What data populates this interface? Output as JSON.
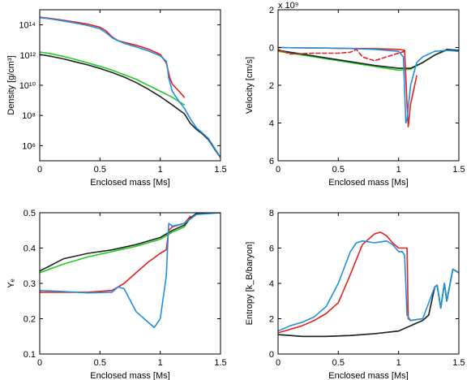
{
  "chart_data": [
    {
      "type": "line",
      "xlabel": "Enclosed mass [Ms]",
      "ylabel": "Density [g/cm³]",
      "yscale": "log",
      "xlim": [
        0,
        1.5
      ],
      "ylim": [
        100000,
        1000000000000000
      ],
      "xticks": [
        0,
        0.5,
        1,
        1.5
      ],
      "xtick_labels": [
        "0",
        "0.5",
        "1",
        "1.5"
      ],
      "yticks": [
        1000000,
        100000000,
        10000000000,
        1000000000000,
        100000000000000
      ],
      "ytick_labels": [
        "10⁶",
        "10⁸",
        "10¹⁰",
        "10¹²",
        "10¹⁴"
      ],
      "series": [
        {
          "color": "#22cc22",
          "style": "solid",
          "x": [
            0,
            0.1,
            0.2,
            0.3,
            0.4,
            0.5,
            0.6,
            0.7,
            0.8,
            0.9,
            1.0,
            1.1,
            1.2
          ],
          "y": [
            1600000000000.0,
            1200000000000.0,
            800000000000.0,
            500000000000.0,
            300000000000.0,
            180000000000.0,
            100000000000.0,
            50000000000.0,
            25000000000.0,
            10000000000.0,
            4000000000.0,
            1600000000.0,
            500000000.0
          ]
        },
        {
          "color": "#222222",
          "style": "solid",
          "x": [
            0,
            0.1,
            0.2,
            0.3,
            0.4,
            0.5,
            0.6,
            0.7,
            0.8,
            0.9,
            1.0,
            1.1,
            1.2,
            1.25,
            1.3,
            1.35,
            1.4,
            1.45,
            1.5
          ],
          "y": [
            1100000000000.0,
            800000000000.0,
            550000000000.0,
            350000000000.0,
            220000000000.0,
            130000000000.0,
            70000000000.0,
            35000000000.0,
            15000000000.0,
            5500000000.0,
            1800000000.0,
            500000000.0,
            130000000.0,
            30000000.0,
            12000000.0,
            6000000.0,
            2500000.0,
            600000.0,
            160000.0
          ]
        },
        {
          "color": "#e8201f",
          "style": "solid",
          "x": [
            0,
            0.1,
            0.2,
            0.3,
            0.4,
            0.5,
            0.55,
            0.6,
            0.65,
            0.7,
            0.8,
            0.9,
            1.0,
            1.05,
            1.08,
            1.1,
            1.15,
            1.2
          ],
          "y": [
            320000000000000.0,
            260000000000000.0,
            200000000000000.0,
            150000000000000.0,
            110000000000000.0,
            70000000000000.0,
            40000000000000.0,
            16000000000000.0,
            9000000000000.0,
            7000000000000.0,
            4500000000000.0,
            2500000000000.0,
            1100000000000.0,
            300000000000.0,
            30000000000.0,
            12000000000.0,
            4500000000.0,
            1600000000.0
          ]
        },
        {
          "color": "#1f8fe0",
          "style": "solid",
          "x": [
            0,
            0.1,
            0.2,
            0.3,
            0.4,
            0.5,
            0.55,
            0.6,
            0.65,
            0.7,
            0.8,
            0.9,
            1.0,
            1.05,
            1.06,
            1.07,
            1.08,
            1.1,
            1.15,
            1.2,
            1.25,
            1.3,
            1.35,
            1.4,
            1.45,
            1.5
          ],
          "y": [
            300000000000000.0,
            240000000000000.0,
            180000000000000.0,
            130000000000000.0,
            90000000000000.0,
            55000000000000.0,
            30000000000000.0,
            14000000000000.0,
            9000000000000.0,
            6000000000000.0,
            3500000000000.0,
            1900000000000.0,
            900000000000.0,
            400000000000.0,
            150000000000.0,
            30000000000.0,
            16000000000.0,
            4000000000.0,
            1000000000.0,
            300000000.0,
            60000000.0,
            15000000.0,
            7000000.0,
            3000000.0,
            700000.0,
            170000.0
          ]
        }
      ]
    },
    {
      "type": "line",
      "xlabel": "Enclosed mass [Ms]",
      "ylabel": "Velocity [cm/s]",
      "scale_note": "x 10⁹",
      "xlim": [
        0,
        1.5
      ],
      "ylim": [
        6,
        -2
      ],
      "xticks": [
        0,
        0.5,
        1,
        1.5
      ],
      "xtick_labels": [
        "0",
        "0.5",
        "1",
        "1.5"
      ],
      "yticks": [
        -2,
        0,
        2,
        4,
        6
      ],
      "ytick_labels": [
        "2",
        "0",
        "2",
        "4",
        "6"
      ],
      "series": [
        {
          "color": "#22cc22",
          "style": "solid",
          "x": [
            0,
            0.2,
            0.4,
            0.6,
            0.8,
            1.0,
            1.1,
            1.2,
            1.3,
            1.4,
            1.5
          ],
          "y": [
            0.2,
            0.4,
            0.6,
            0.8,
            1.0,
            1.2,
            1.15,
            0.8,
            0.4,
            0.15,
            0.2
          ]
        },
        {
          "color": "#222222",
          "style": "solid",
          "x": [
            0,
            0.2,
            0.4,
            0.6,
            0.8,
            1.0,
            1.1,
            1.2,
            1.3,
            1.4,
            1.5
          ],
          "y": [
            0.15,
            0.35,
            0.55,
            0.75,
            0.95,
            1.1,
            1.1,
            0.8,
            0.4,
            0.1,
            0.15
          ]
        },
        {
          "color": "#e8201f",
          "style": "dashed",
          "x": [
            0,
            0.1,
            0.3,
            0.5,
            0.6,
            0.65,
            0.7,
            0.8,
            0.9,
            1.0,
            1.05
          ],
          "y": [
            0.1,
            0.35,
            0.3,
            0.3,
            0.25,
            0.1,
            0.5,
            0.7,
            0.5,
            0.3,
            0.2
          ]
        },
        {
          "color": "#e8201f",
          "style": "solid",
          "x": [
            0,
            0.2,
            0.4,
            0.6,
            0.8,
            1.0,
            1.05,
            1.07,
            1.08,
            1.1,
            1.15
          ],
          "y": [
            0,
            0.02,
            0.03,
            0.05,
            0.06,
            0.1,
            0.15,
            3.0,
            4.2,
            3.0,
            1.5
          ]
        },
        {
          "color": "#1f8fe0",
          "style": "solid",
          "x": [
            0,
            0.2,
            0.4,
            0.6,
            0.8,
            1.0,
            1.04,
            1.06,
            1.07,
            1.1,
            1.15,
            1.2,
            1.3,
            1.4,
            1.5
          ],
          "y": [
            0,
            0.02,
            0.03,
            0.05,
            0.1,
            0.2,
            0.5,
            4.0,
            3.8,
            2.0,
            0.8,
            0.5,
            0.2,
            0.15,
            0.2
          ]
        }
      ]
    },
    {
      "type": "line",
      "xlabel": "Enclosed mass [Ms]",
      "ylabel": "Yₑ",
      "xlim": [
        0,
        1.5
      ],
      "ylim": [
        0.1,
        0.5
      ],
      "xticks": [
        0,
        0.5,
        1,
        1.5
      ],
      "xtick_labels": [
        "0",
        "0.5",
        "1",
        "1.5"
      ],
      "yticks": [
        0.1,
        0.2,
        0.3,
        0.4,
        0.5
      ],
      "ytick_labels": [
        "0.1",
        "0.2",
        "0.3",
        "0.4",
        "0.5"
      ],
      "series": [
        {
          "color": "#22cc22",
          "style": "solid",
          "x": [
            0,
            0.2,
            0.4,
            0.6,
            0.8,
            1.0,
            1.1,
            1.2,
            1.25,
            1.3,
            1.5
          ],
          "y": [
            0.33,
            0.355,
            0.375,
            0.39,
            0.405,
            0.425,
            0.445,
            0.46,
            0.485,
            0.498,
            0.5
          ]
        },
        {
          "color": "#222222",
          "style": "solid",
          "x": [
            0,
            0.2,
            0.4,
            0.6,
            0.8,
            1.0,
            1.1,
            1.2,
            1.25,
            1.3,
            1.5
          ],
          "y": [
            0.335,
            0.37,
            0.385,
            0.395,
            0.41,
            0.43,
            0.45,
            0.465,
            0.485,
            0.498,
            0.5
          ]
        },
        {
          "color": "#e8201f",
          "style": "solid",
          "x": [
            0,
            0.2,
            0.4,
            0.6,
            0.7,
            0.8,
            0.9,
            1.0,
            1.05,
            1.07,
            1.1,
            1.2,
            1.25
          ],
          "y": [
            0.275,
            0.275,
            0.275,
            0.28,
            0.3,
            0.33,
            0.36,
            0.385,
            0.395,
            0.45,
            0.46,
            0.47,
            0.49
          ]
        },
        {
          "color": "#1f8fe0",
          "style": "solid",
          "x": [
            0,
            0.2,
            0.4,
            0.6,
            0.65,
            0.7,
            0.8,
            0.9,
            0.95,
            1.0,
            1.05,
            1.07,
            1.1,
            1.2,
            1.3,
            1.5
          ],
          "y": [
            0.28,
            0.277,
            0.273,
            0.275,
            0.29,
            0.285,
            0.22,
            0.19,
            0.175,
            0.2,
            0.32,
            0.47,
            0.462,
            0.47,
            0.495,
            0.5
          ]
        }
      ]
    },
    {
      "type": "line",
      "xlabel": "Enclosed mass [Ms]",
      "ylabel": "Entropy [k_B/baryon]",
      "xlim": [
        0,
        1.5
      ],
      "ylim": [
        0,
        8
      ],
      "xticks": [
        0,
        0.5,
        1,
        1.5
      ],
      "xtick_labels": [
        "0",
        "0.5",
        "1",
        "1.5"
      ],
      "yticks": [
        0,
        2,
        4,
        6,
        8
      ],
      "ytick_labels": [
        "0",
        "2",
        "4",
        "6",
        "8"
      ],
      "series": [
        {
          "color": "#22cc22",
          "style": "solid",
          "x": [
            0,
            0.2,
            0.4,
            0.6,
            0.8,
            1.0,
            1.1,
            1.2,
            1.25,
            1.3,
            1.32,
            1.35,
            1.38,
            1.4,
            1.45,
            1.5
          ],
          "y": [
            1.1,
            1.0,
            1.0,
            1.05,
            1.15,
            1.3,
            1.6,
            1.9,
            2.2,
            3.8,
            3.9,
            2.6,
            4.0,
            3.0,
            4.8,
            4.6
          ]
        },
        {
          "color": "#222222",
          "style": "solid",
          "x": [
            0,
            0.2,
            0.4,
            0.6,
            0.8,
            1.0,
            1.1,
            1.2,
            1.25,
            1.3,
            1.32,
            1.35,
            1.38,
            1.4,
            1.45,
            1.5
          ],
          "y": [
            1.1,
            1.0,
            1.0,
            1.05,
            1.15,
            1.3,
            1.6,
            1.9,
            2.2,
            3.8,
            3.9,
            2.6,
            4.0,
            3.0,
            4.8,
            4.6
          ]
        },
        {
          "color": "#e8201f",
          "style": "solid",
          "x": [
            0,
            0.1,
            0.2,
            0.3,
            0.4,
            0.5,
            0.6,
            0.7,
            0.8,
            0.85,
            0.9,
            0.95,
            1.0,
            1.05,
            1.07,
            1.08,
            1.1,
            1.2
          ],
          "y": [
            1.2,
            1.4,
            1.6,
            1.9,
            2.3,
            2.9,
            4.5,
            6.2,
            6.8,
            6.9,
            6.7,
            6.3,
            6.0,
            6.0,
            6.0,
            2.0,
            1.9,
            2.0
          ]
        },
        {
          "color": "#1f8fe0",
          "style": "solid",
          "x": [
            0,
            0.1,
            0.2,
            0.3,
            0.4,
            0.5,
            0.6,
            0.65,
            0.7,
            0.8,
            0.9,
            0.95,
            1.0,
            1.03,
            1.05,
            1.07,
            1.1,
            1.2,
            1.3,
            1.32,
            1.35,
            1.38,
            1.4,
            1.45,
            1.5
          ],
          "y": [
            1.3,
            1.6,
            1.8,
            2.1,
            2.7,
            4.0,
            5.8,
            6.3,
            6.4,
            6.3,
            6.4,
            6.2,
            5.8,
            5.8,
            5.6,
            2.2,
            1.9,
            2.0,
            3.8,
            3.9,
            2.6,
            4.0,
            3.0,
            4.8,
            4.6
          ]
        }
      ]
    }
  ]
}
